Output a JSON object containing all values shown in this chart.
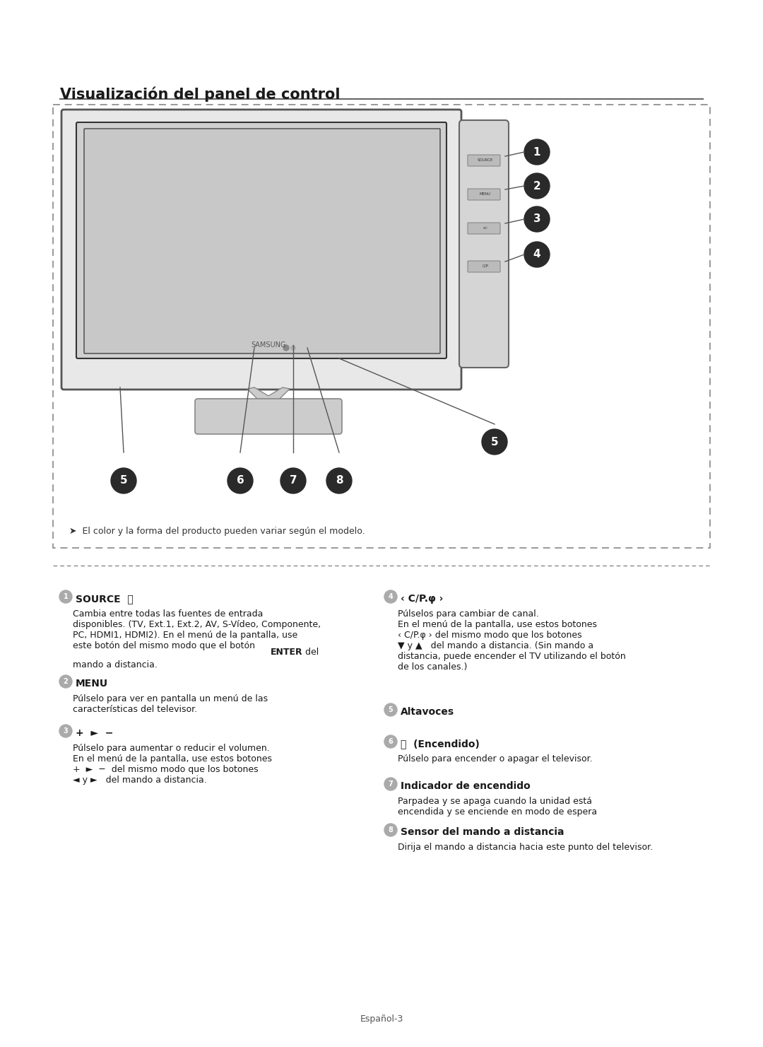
{
  "title": "Visualización del panel de control",
  "page_number": "Español-3",
  "background_color": "#ffffff",
  "border_color": "#999999",
  "text_color": "#1a1a1a",
  "disclaimer": "➤  El color y la forma del producto pueden variar según el modelo.",
  "items_left": [
    {
      "num": "1",
      "heading": "SOURCE  ⭳",
      "body": "Cambia entre todas las fuentes de entrada\ndisponibles. (TV, Ext.1, Ext.2, AV, S-Vídeo, Componente,\nPC, HDMI1, HDMI2). En el menú de la pantalla, use\neste botón del mismo modo que el botón ENTER del\nmando a distancia."
    },
    {
      "num": "2",
      "heading": "MENU",
      "body": "Púlselo para ver en pantalla un menú de las\ncaracterísticas del televisor."
    },
    {
      "num": "3",
      "heading": "+ ► −",
      "body": "Púlselo para aumentar o reducir el volumen.\nEn el menú de la pantalla, use estos botones\n+ ► −  del mismo modo que los botones\n◄ y ►  del mando a distancia."
    }
  ],
  "items_right": [
    {
      "num": "4",
      "heading": "‹ C/P.φ ›",
      "body": "Púlselos para cambiar de canal.\nEn el menú de la pantalla, use estos botones\n‹ C/P.φ › del mismo modo que los botones\n▼ y ▲  del mando a distancia. (Sin mando a\ndistancia, puede encender el TV utilizando el botón\nde los canales.)"
    },
    {
      "num": "5",
      "heading": "Altavoces",
      "body": ""
    },
    {
      "num": "6",
      "heading": "⏻  (Encendido)",
      "body": "Púlselo para encender o apagar el televisor."
    },
    {
      "num": "7",
      "heading": "Indicador de encendido",
      "body": "Parpadea y se apaga cuando la unidad está\nencendida y se enciende en modo de espera"
    },
    {
      "num": "8",
      "heading": "Sensor del mando a distancia",
      "body": "Dirija el mando a distancia hacia este punto del televisor."
    }
  ]
}
